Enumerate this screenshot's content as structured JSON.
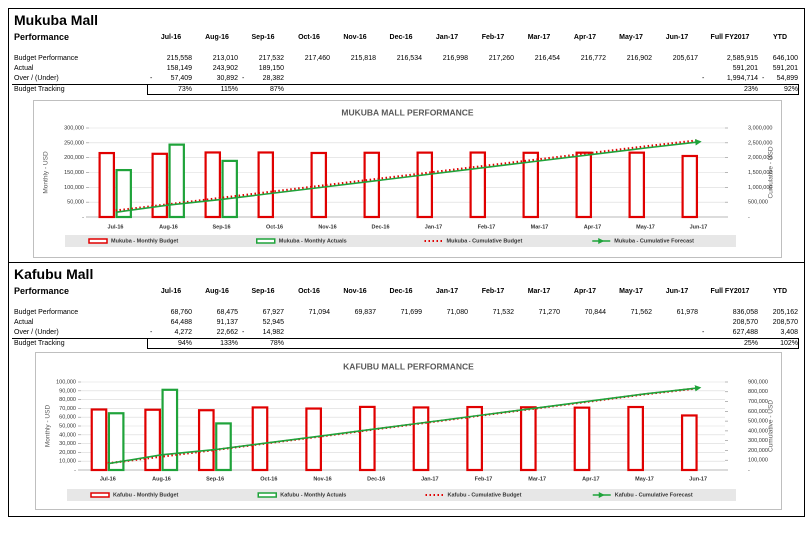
{
  "sections": [
    {
      "title": "Mukuba Mall",
      "table": {
        "header": [
          "Performance",
          "Jul-16",
          "Aug-16",
          "Sep-16",
          "Oct-16",
          "Nov-16",
          "Dec-16",
          "Jan-17",
          "Feb-17",
          "Mar-17",
          "Apr-17",
          "May-17",
          "Jun-17",
          "Full FY2017",
          "YTD"
        ],
        "rows": [
          [
            "Budget Performance",
            "215,558",
            "213,010",
            "217,532",
            "217,460",
            "215,818",
            "216,534",
            "216,998",
            "217,260",
            "216,454",
            "216,772",
            "216,902",
            "205,617",
            "2,585,915",
            "646,100"
          ],
          [
            "Actual",
            "158,149",
            "243,902",
            "189,150",
            null,
            null,
            null,
            null,
            null,
            null,
            null,
            null,
            null,
            "591,201",
            "591,201"
          ],
          [
            "Over / (Under)",
            "- 57,409",
            "30,892",
            "- 28,382",
            null,
            null,
            null,
            null,
            null,
            null,
            null,
            null,
            null,
            "- 1,994,714",
            "- 54,899"
          ],
          [
            "Budget Tracking",
            "73%",
            "115%",
            "87%",
            null,
            null,
            null,
            null,
            null,
            null,
            null,
            null,
            null,
            "23%",
            "92%"
          ]
        ]
      }
    },
    {
      "title": "Kafubu Mall",
      "table": {
        "header": [
          "Performance",
          "Jul-16",
          "Aug-16",
          "Sep-16",
          "Oct-16",
          "Nov-16",
          "Dec-16",
          "Jan-17",
          "Feb-17",
          "Mar-17",
          "Apr-17",
          "May-17",
          "Jun-17",
          "Full FY2017",
          "YTD"
        ],
        "rows": [
          [
            "Budget Performance",
            "68,760",
            "68,475",
            "67,927",
            "71,094",
            "69,837",
            "71,699",
            "71,080",
            "71,532",
            "71,270",
            "70,844",
            "71,562",
            "61,978",
            "836,058",
            "205,162"
          ],
          [
            "Actual",
            "64,488",
            "91,137",
            "52,945",
            null,
            null,
            null,
            null,
            null,
            null,
            null,
            null,
            null,
            "208,570",
            "208,570"
          ],
          [
            "Over / (Under)",
            "- 4,272",
            "22,662",
            "- 14,982",
            null,
            null,
            null,
            null,
            null,
            null,
            null,
            null,
            null,
            "- 627,488",
            "3,408"
          ],
          [
            "Budget Tracking",
            "94%",
            "133%",
            "78%",
            null,
            null,
            null,
            null,
            null,
            null,
            null,
            null,
            null,
            "25%",
            "102%"
          ]
        ]
      }
    }
  ],
  "chart_data": [
    {
      "type": "bar",
      "title": "MUKUBA MALL PERFORMANCE",
      "ylabel": "Monthly - USD",
      "y2label": "Cumulative - USD",
      "categories": [
        "Jul-16",
        "Aug-16",
        "Sep-16",
        "Oct-16",
        "Nov-16",
        "Dec-16",
        "Jan-17",
        "Feb-17",
        "Mar-17",
        "Apr-17",
        "May-17",
        "Jun-17"
      ],
      "series": [
        {
          "name": "Mukuba - Monthly Budget",
          "type": "bar",
          "color": "#e00000",
          "values": [
            215558,
            213010,
            217532,
            217460,
            215818,
            216534,
            216998,
            217260,
            216454,
            216772,
            216902,
            205617
          ]
        },
        {
          "name": "Mukuba - Monthly Actuals",
          "type": "bar",
          "color": "#1fa33a",
          "values": [
            158149,
            243902,
            189150,
            null,
            null,
            null,
            null,
            null,
            null,
            null,
            null,
            null
          ]
        },
        {
          "name": "Mukuba - Cumulative Budget",
          "type": "line",
          "axis": "y2",
          "dashed": true,
          "color": "#e00000",
          "values": [
            215558,
            428568,
            646100,
            863560,
            1079378,
            1295912,
            1512910,
            1730170,
            1946624,
            2163396,
            2380298,
            2585915
          ]
        },
        {
          "name": "Mukuba - Cumulative Forecast",
          "type": "line",
          "axis": "y2",
          "arrow": true,
          "color": "#1fa33a",
          "values": [
            158149,
            402051,
            591201,
            808661,
            1024479,
            1241013,
            1458011,
            1675271,
            1891725,
            2108497,
            2325399,
            2531016
          ]
        }
      ],
      "ylim": [
        0,
        300000
      ],
      "yticks": [
        {
          "value": 0,
          "label": "-"
        },
        {
          "value": 50000,
          "label": "50,000"
        },
        {
          "value": 100000,
          "label": "100,000"
        },
        {
          "value": 150000,
          "label": "150,000"
        },
        {
          "value": 200000,
          "label": "200,000"
        },
        {
          "value": 250000,
          "label": "250,000"
        },
        {
          "value": 300000,
          "label": "300,000"
        }
      ],
      "y2lim": [
        0,
        3000000
      ],
      "y2ticks": [
        {
          "value": 0,
          "label": "-"
        },
        {
          "value": 500000,
          "label": "500,000"
        },
        {
          "value": 1000000,
          "label": "1,000,000"
        },
        {
          "value": 1500000,
          "label": "1,500,000"
        },
        {
          "value": 2000000,
          "label": "2,000,000"
        },
        {
          "value": 2500000,
          "label": "2,500,000"
        },
        {
          "value": 3000000,
          "label": "3,000,000"
        }
      ],
      "grid": true
    },
    {
      "type": "bar",
      "title": "KAFUBU MALL PERFORMANCE",
      "ylabel": "Monthly - USD",
      "y2label": "Cumulative - USD",
      "categories": [
        "Jul-16",
        "Aug-16",
        "Sep-16",
        "Oct-16",
        "Nov-16",
        "Dec-16",
        "Jan-17",
        "Feb-17",
        "Mar-17",
        "Apr-17",
        "May-17",
        "Jun-17"
      ],
      "series": [
        {
          "name": "Kafubu - Monthly Budget",
          "type": "bar",
          "color": "#e00000",
          "values": [
            68760,
            68475,
            67927,
            71094,
            69837,
            71699,
            71080,
            71532,
            71270,
            70844,
            71562,
            61978
          ]
        },
        {
          "name": "Kafubu - Monthly Actuals",
          "type": "bar",
          "color": "#1fa33a",
          "values": [
            64488,
            91137,
            52945,
            null,
            null,
            null,
            null,
            null,
            null,
            null,
            null,
            null
          ]
        },
        {
          "name": "Kafubu - Cumulative Budget",
          "type": "line",
          "axis": "y2",
          "dashed": true,
          "color": "#e00000",
          "values": [
            68760,
            137235,
            205162,
            276256,
            346093,
            417792,
            488872,
            560404,
            631674,
            702518,
            774080,
            836058
          ]
        },
        {
          "name": "Kafubu - Cumulative Forecast",
          "type": "line",
          "axis": "y2",
          "arrow": true,
          "color": "#1fa33a",
          "values": [
            64488,
            155625,
            208570,
            279664,
            349501,
            421200,
            492280,
            563812,
            635082,
            705926,
            777488,
            839466
          ]
        }
      ],
      "ylim": [
        0,
        100000
      ],
      "yticks": [
        {
          "value": 0,
          "label": "-"
        },
        {
          "value": 10000,
          "label": "10,000"
        },
        {
          "value": 20000,
          "label": "20,000"
        },
        {
          "value": 30000,
          "label": "30,000"
        },
        {
          "value": 40000,
          "label": "40,000"
        },
        {
          "value": 50000,
          "label": "50,000"
        },
        {
          "value": 60000,
          "label": "60,000"
        },
        {
          "value": 70000,
          "label": "70,000"
        },
        {
          "value": 80000,
          "label": "80,000"
        },
        {
          "value": 90000,
          "label": "90,000"
        },
        {
          "value": 100000,
          "label": "100,000"
        }
      ],
      "y2lim": [
        0,
        900000
      ],
      "y2ticks": [
        {
          "value": 0,
          "label": "-"
        },
        {
          "value": 100000,
          "label": "100,000"
        },
        {
          "value": 200000,
          "label": "200,000"
        },
        {
          "value": 300000,
          "label": "300,000"
        },
        {
          "value": 400000,
          "label": "400,000"
        },
        {
          "value": 500000,
          "label": "500,000"
        },
        {
          "value": 600000,
          "label": "600,000"
        },
        {
          "value": 700000,
          "label": "700,000"
        },
        {
          "value": 800000,
          "label": "800,000"
        },
        {
          "value": 900000,
          "label": "900,000"
        }
      ],
      "grid": true
    }
  ]
}
